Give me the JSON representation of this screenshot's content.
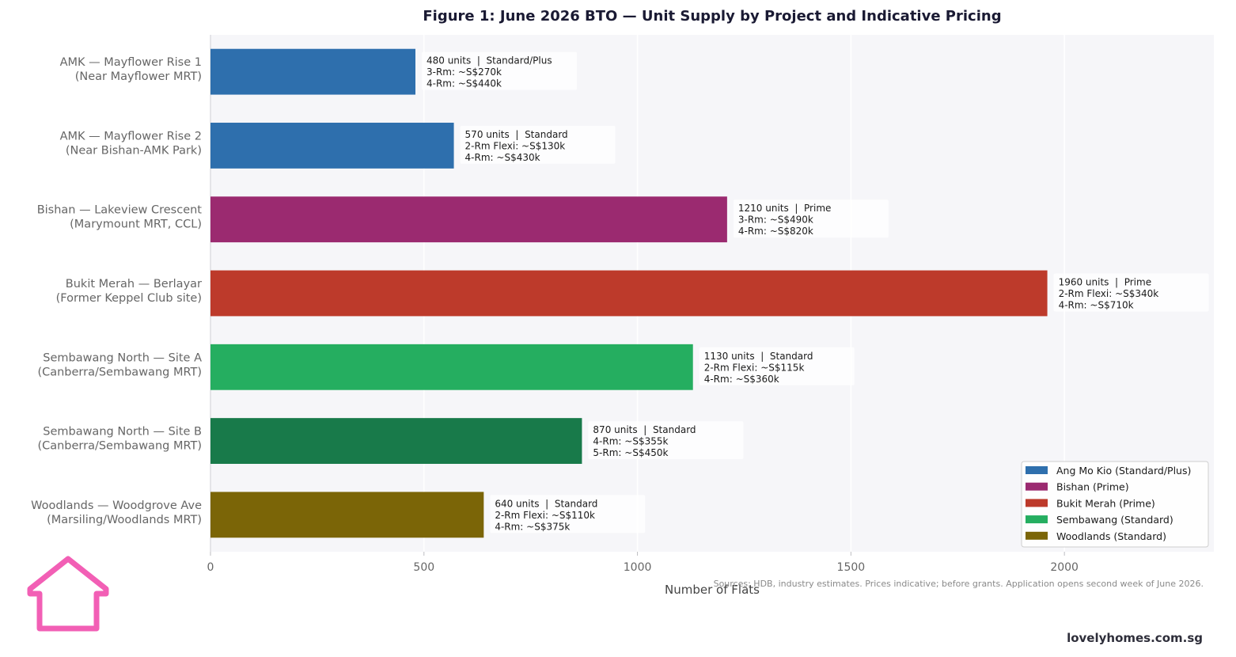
{
  "chart_data": {
    "type": "bar",
    "orientation": "horizontal",
    "title": "Figure 1: June 2026 BTO — Unit Supply by Project and Indicative Pricing",
    "xlabel": "Number of Flats",
    "ylabel": "",
    "xlim": [
      0,
      2350
    ],
    "xticks": [
      0,
      500,
      1000,
      1500,
      2000
    ],
    "grid": "vertical",
    "legend_position": "bottom-right",
    "categories": [
      "AMK — Mayflower Rise 1\n(Near Mayflower MRT)",
      "AMK — Mayflower Rise 2\n(Near Bishan-AMK Park)",
      "Bishan — Lakeview Crescent\n(Marymount MRT, CCL)",
      "Bukit Merah — Berlayar\n(Former Keppel Club site)",
      "Sembawang North — Site A\n(Canberra/Sembawang MRT)",
      "Sembawang North — Site B\n(Canberra/Sembawang MRT)",
      "Woodlands — Woodgrove Ave\n(Marsiling/Woodlands MRT)"
    ],
    "values": [
      480,
      570,
      1210,
      1960,
      1130,
      870,
      640
    ],
    "bar_colors": [
      "#2e6fad",
      "#2e6fad",
      "#9b2a70",
      "#bd3a2b",
      "#25ae60",
      "#187a4a",
      "#7b6507"
    ],
    "annotations": [
      "480 units  |  Standard/Plus\n3-Rm: ~S$270k\n4-Rm: ~S$440k",
      "570 units  |  Standard\n2-Rm Flexi: ~S$130k\n4-Rm: ~S$430k",
      "1210 units  |  Prime\n3-Rm: ~S$490k\n4-Rm: ~S$820k",
      "1960 units  |  Prime\n2-Rm Flexi: ~S$340k\n4-Rm: ~S$710k",
      "1130 units  |  Standard\n2-Rm Flexi: ~S$115k\n4-Rm: ~S$360k",
      "870 units  |  Standard\n4-Rm: ~S$355k\n5-Rm: ~S$450k",
      "640 units  |  Standard\n2-Rm Flexi: ~S$110k\n4-Rm: ~S$375k"
    ],
    "legend": [
      {
        "name": "Ang Mo Kio (Standard/Plus)",
        "color": "#2e6fad"
      },
      {
        "name": "Bishan (Prime)",
        "color": "#9b2a70"
      },
      {
        "name": "Bukit Merah (Prime)",
        "color": "#bd3a2b"
      },
      {
        "name": "Sembawang (Standard)",
        "color": "#25ae60"
      },
      {
        "name": "Woodlands (Standard)",
        "color": "#7b6507"
      }
    ],
    "source_note": "Sources: HDB, industry estimates. Prices indicative; before grants. Application opens second week of June 2026."
  },
  "brand": {
    "site": "lovelyhomes.com.sg",
    "logo_icon": "house-outline-icon",
    "logo_color": "#f25fb5"
  }
}
